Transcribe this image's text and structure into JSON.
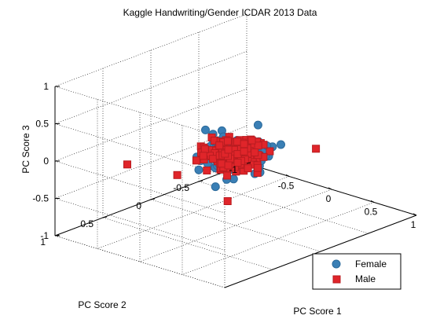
{
  "chart_data": {
    "type": "scatter3d",
    "title": "Kaggle Handwriting/Gender ICDAR 2013 Data",
    "xlabel": "PC Score 1",
    "ylabel": "PC Score 2",
    "zlabel": "PC Score 3",
    "xlim": [
      -1,
      1
    ],
    "ylim": [
      -1,
      1
    ],
    "zlim": [
      -1,
      1
    ],
    "xticks": [
      "-0.5",
      "0",
      "0.5",
      "1"
    ],
    "yticks": [
      "-1",
      "-0.5",
      "0",
      "0.5",
      "1"
    ],
    "zticks": [
      "-1",
      "-0.5",
      "0",
      "0.5",
      "1"
    ],
    "grid": true,
    "legend_position": "bottom-right",
    "series": [
      {
        "name": "Female",
        "marker": "circle",
        "color": "#3a7fb5",
        "sample_points": [
          [
            -0.05,
            0.1,
            0.3
          ],
          [
            0.15,
            -0.1,
            0.35
          ],
          [
            0.3,
            0.05,
            0.1
          ],
          [
            -0.2,
            0.2,
            -0.1
          ],
          [
            0.1,
            0.3,
            -0.3
          ],
          [
            0.25,
            -0.25,
            0.05
          ],
          [
            -0.15,
            -0.1,
            -0.35
          ],
          [
            0.4,
            0.1,
            -0.1
          ],
          [
            0.05,
            -0.3,
            -0.2
          ],
          [
            -0.3,
            0.05,
            0.2
          ]
        ]
      },
      {
        "name": "Male",
        "marker": "square",
        "color": "#e0252a",
        "sample_points": [
          [
            -0.6,
            0.6,
            -0.1
          ],
          [
            0.55,
            -0.35,
            0.05
          ],
          [
            0.0,
            0.25,
            0.3
          ],
          [
            0.2,
            -0.05,
            -0.25
          ],
          [
            -0.25,
            0.0,
            0.05
          ],
          [
            0.45,
            0.2,
            0.2
          ],
          [
            -0.1,
            -0.35,
            -0.1
          ],
          [
            0.3,
            0.35,
            -0.4
          ],
          [
            0.1,
            0.0,
            0.0
          ],
          [
            -0.35,
            0.3,
            -0.3
          ]
        ]
      }
    ]
  }
}
